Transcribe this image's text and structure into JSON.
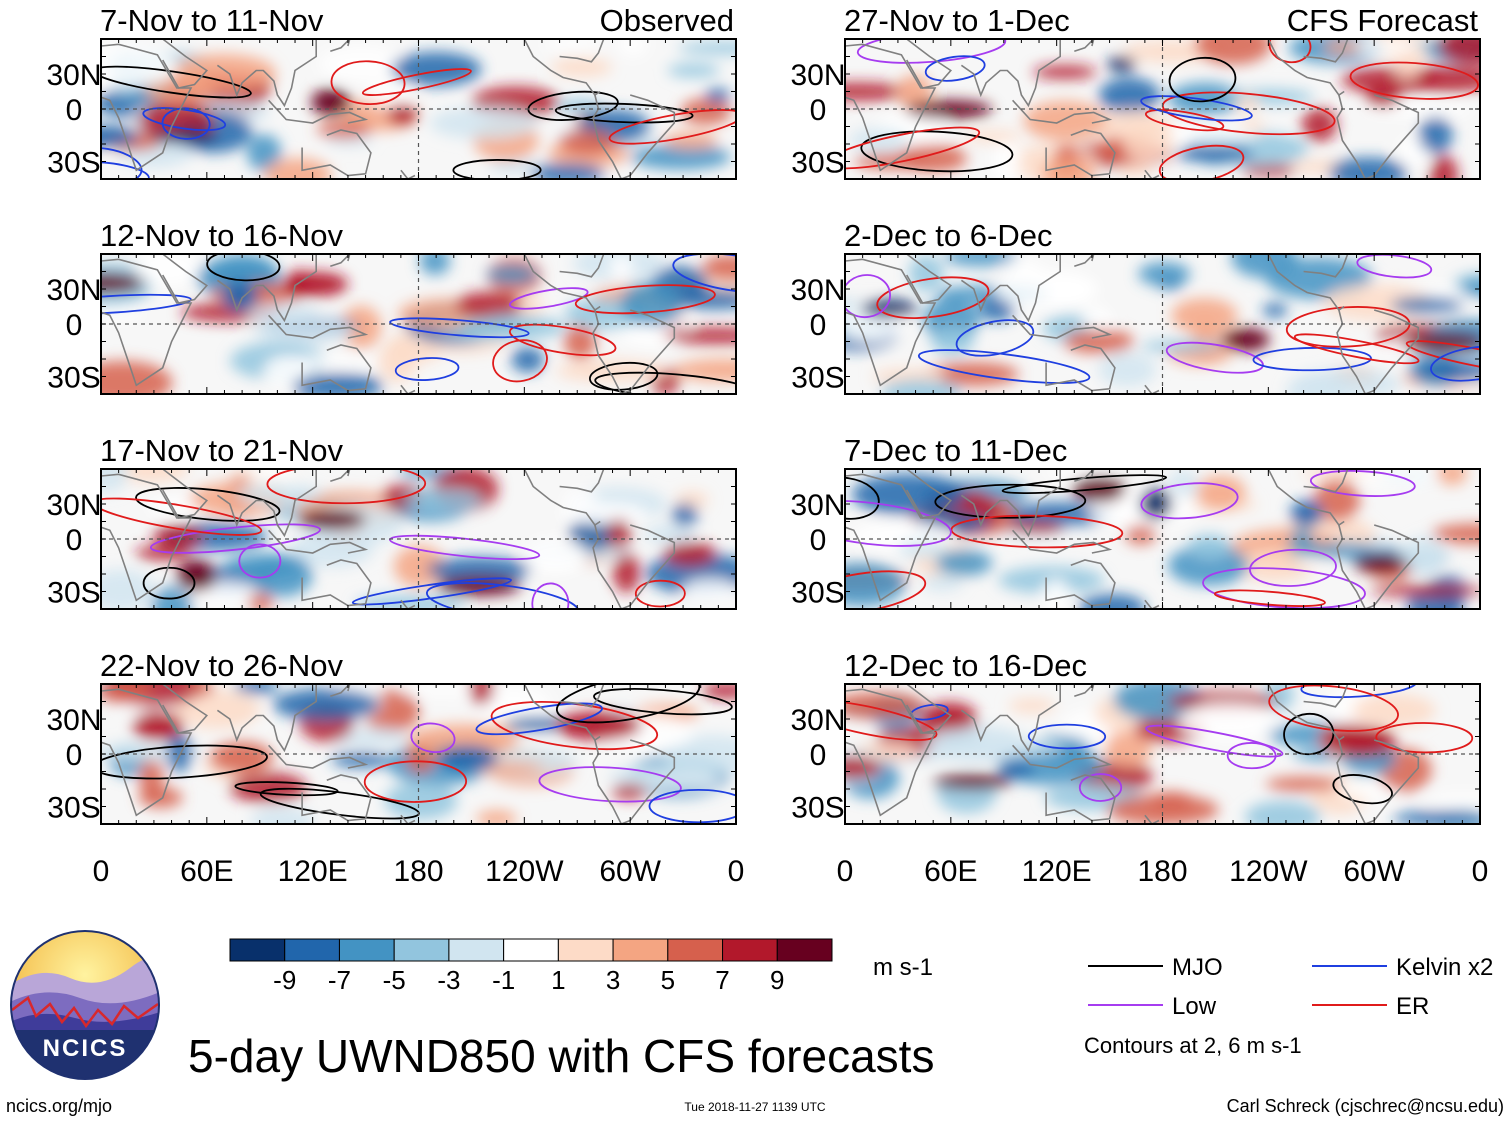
{
  "chart_data": {
    "type": "heatmap",
    "title": "5-day UWND850 with CFS forecasts",
    "variable": "UWND850",
    "units": "m s-1",
    "column_labels": {
      "left": "Observed",
      "right": "CFS Forecast"
    },
    "y_ticks": [
      "30N",
      "0",
      "30S"
    ],
    "x_ticks": [
      "0",
      "60E",
      "120E",
      "180",
      "120W",
      "60W",
      "0"
    ],
    "lat_range": [
      -40,
      40
    ],
    "lon_range": [
      0,
      360
    ],
    "panels": [
      {
        "period": "7-Nov to 11-Nov",
        "source": "Observed"
      },
      {
        "period": "12-Nov to 16-Nov",
        "source": "Observed"
      },
      {
        "period": "17-Nov to 21-Nov",
        "source": "Observed"
      },
      {
        "period": "22-Nov to 26-Nov",
        "source": "Observed"
      },
      {
        "period": "27-Nov to 1-Dec",
        "source": "CFS Forecast"
      },
      {
        "period": "2-Dec to 6-Dec",
        "source": "CFS Forecast"
      },
      {
        "period": "7-Dec to 11-Dec",
        "source": "CFS Forecast"
      },
      {
        "period": "12-Dec to 16-Dec",
        "source": "CFS Forecast"
      }
    ],
    "colorbar": {
      "ticks": [
        "-9",
        "-7",
        "-5",
        "-3",
        "-1",
        "1",
        "3",
        "5",
        "7",
        "9"
      ],
      "colors": [
        "#08306b",
        "#2166ac",
        "#4393c3",
        "#92c5de",
        "#d1e5f0",
        "#ffffff",
        "#fddbc7",
        "#f4a582",
        "#d6604d",
        "#b2182b",
        "#67001f"
      ]
    },
    "contour_legend": [
      {
        "name": "MJO",
        "color": "#000000"
      },
      {
        "name": "Low",
        "color": "#a63cf0"
      },
      {
        "name": "Kelvin x2",
        "color": "#1f3fe0"
      },
      {
        "name": "ER",
        "color": "#e01b1b"
      }
    ],
    "contour_note": "Contours at 2, 6 m s-1"
  },
  "logo": {
    "text": "NCICS"
  },
  "footer": {
    "url": "ncics.org/mjo",
    "timestamp": "Tue 2018-11-27 1139 UTC",
    "credit": "Carl Schreck (cjschrec@ncsu.edu)"
  }
}
